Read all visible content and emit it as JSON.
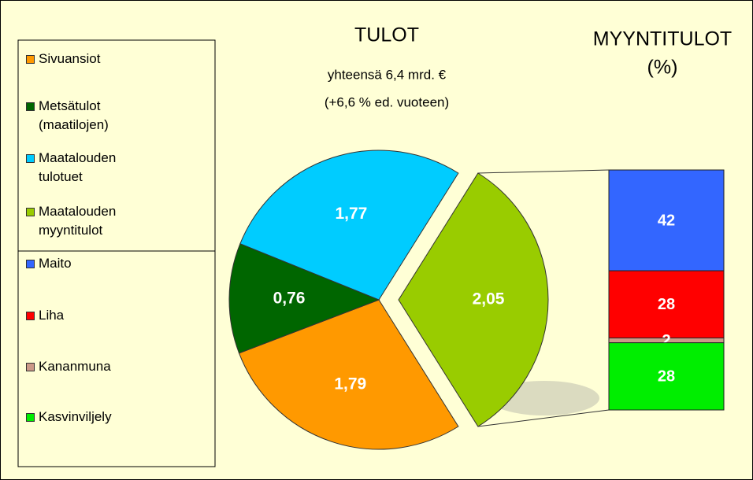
{
  "chart_data": [
    {
      "type": "pie",
      "title": "TULOT",
      "subtitle": [
        "yhteensä 6,4 mrd. €",
        "(+6,6 % ed. vuoteen)"
      ],
      "categories": [
        "Sivuansiot",
        "Metsätulot (maatilojen)",
        "Maatalouden tulotuet",
        "Maatalouden myyntitulot"
      ],
      "values": [
        1.79,
        0.76,
        1.77,
        2.05
      ],
      "value_labels": [
        "1,79",
        "0,76",
        "1,77",
        "2,05"
      ],
      "colors": [
        "#ff9900",
        "#006600",
        "#00ccff",
        "#99cc00"
      ]
    },
    {
      "type": "bar",
      "stacked": true,
      "title": "MYYNTITULOT",
      "subtitle": "(%)",
      "series": [
        {
          "name": "Maito",
          "color": "#3366ff",
          "values": [
            42
          ]
        },
        {
          "name": "Liha",
          "color": "#ff0000",
          "values": [
            28
          ]
        },
        {
          "name": "Kananmuna",
          "color": "#cc9988",
          "values": [
            2
          ]
        },
        {
          "name": "Kasvinviljely",
          "color": "#00ee00",
          "values": [
            28
          ]
        }
      ]
    }
  ]
}
